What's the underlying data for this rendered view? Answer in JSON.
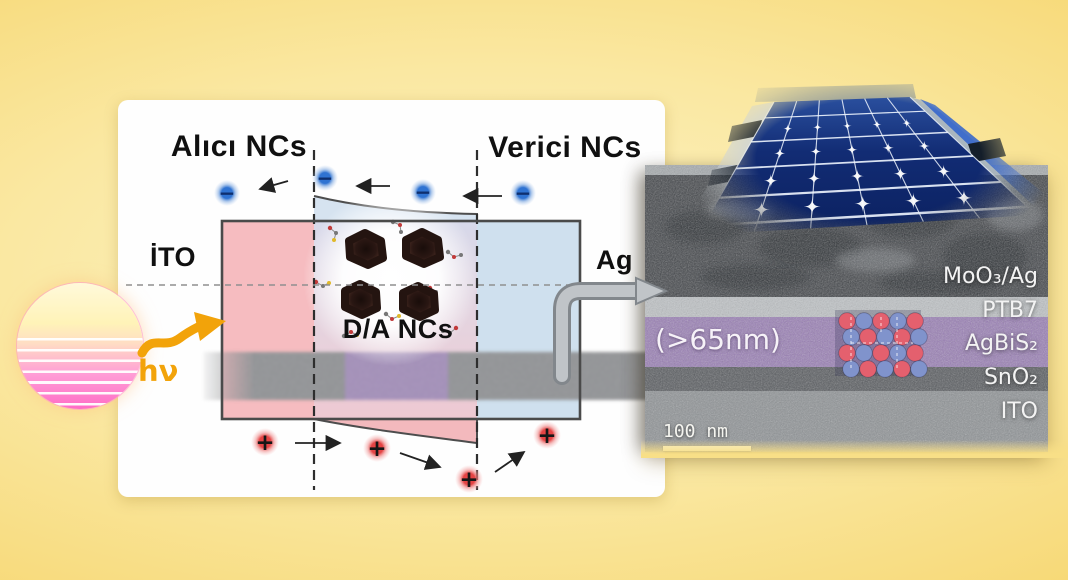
{
  "band_diagram": {
    "acceptor_title": "Alıcı NCs",
    "donor_title": "Verici NCs",
    "left_electrode": "İTO",
    "right_electrode": "Ag",
    "center_label": "D/A NCs",
    "photon_label": "hν",
    "electron_symbol": "−",
    "hole_symbol": "+"
  },
  "tem": {
    "thickness_label": "(>65nm)",
    "scale_bar_label": "100 nm",
    "layer_labels": [
      "MoO₃/Ag",
      "PTB7",
      "AgBiS₂",
      "SnO₂",
      "ITO"
    ]
  },
  "colors": {
    "background_gold": "#F2CC55",
    "acceptor_pink": "#F6BCC0",
    "donor_blue": "#CFE0EE",
    "electron_blue": "#2F73D2",
    "hole_red": "#E44444",
    "photon_orange": "#F2A30A",
    "agbis2_purple": "#9A7FB6",
    "module_navy": "#0B2160",
    "crystal_red": "#E4606E",
    "crystal_blue": "#8093CC"
  }
}
